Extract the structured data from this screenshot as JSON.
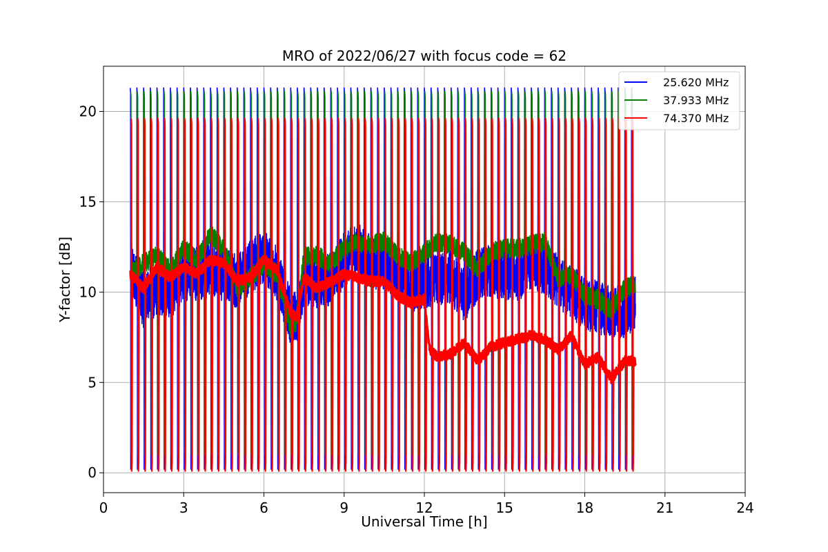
{
  "chart_data": {
    "type": "line",
    "title": "MRO of 2022/06/27 with focus code = 62",
    "xlabel": "Universal Time [h]",
    "ylabel": "Y-factor [dB]",
    "xlim": [
      0,
      24
    ],
    "ylim": [
      -1.1,
      22.5
    ],
    "xticks": [
      0,
      3,
      6,
      9,
      12,
      15,
      18,
      21,
      24
    ],
    "yticks": [
      0,
      5,
      10,
      15,
      20
    ],
    "grid": true,
    "legend_position": "top-right",
    "calibration_pulses": {
      "start_h": 1.0,
      "period_h": 0.25,
      "count": 76,
      "peak": {
        "25.620 MHz": 21.3,
        "37.933 MHz": 21.1,
        "74.370 MHz": 19.6
      },
      "floor": {
        "25.620 MHz": 0.2,
        "37.933 MHz": 1.0,
        "74.370 MHz": 0.1
      }
    },
    "series": [
      {
        "name": "25.620 MHz",
        "color": "#0000ff",
        "noise_amplitude": 1.5,
        "x": [
          1.0,
          1.5,
          2.0,
          2.5,
          3.0,
          3.5,
          4.0,
          4.5,
          5.0,
          5.5,
          6.0,
          6.5,
          7.0,
          7.2,
          7.5,
          8.0,
          8.5,
          9.0,
          9.5,
          10.0,
          10.5,
          11.0,
          11.5,
          12.0,
          12.5,
          13.0,
          13.5,
          14.0,
          14.5,
          15.0,
          15.5,
          16.0,
          16.5,
          17.0,
          17.5,
          18.0,
          18.5,
          19.0,
          19.5,
          19.9
        ],
        "values": [
          11.5,
          9.5,
          10.2,
          10.0,
          11.0,
          11.0,
          11.2,
          11.0,
          10.6,
          11.4,
          12.0,
          11.0,
          8.6,
          8.5,
          10.8,
          10.6,
          10.6,
          11.8,
          12.4,
          11.6,
          11.6,
          11.0,
          10.4,
          10.6,
          10.8,
          10.8,
          9.8,
          11.0,
          11.2,
          11.0,
          11.0,
          11.6,
          11.4,
          10.6,
          10.0,
          9.4,
          9.2,
          8.8,
          9.0,
          9.4
        ]
      },
      {
        "name": "37.933 MHz",
        "color": "#008000",
        "noise_amplitude": 0.55,
        "x": [
          1.0,
          1.5,
          2.0,
          2.5,
          3.0,
          3.5,
          4.0,
          4.5,
          5.0,
          5.5,
          6.0,
          6.5,
          7.0,
          7.2,
          7.5,
          8.0,
          8.5,
          9.0,
          9.5,
          10.0,
          10.5,
          11.0,
          11.5,
          12.0,
          12.5,
          13.0,
          13.5,
          14.0,
          14.5,
          15.0,
          15.5,
          16.0,
          16.5,
          17.0,
          17.5,
          18.0,
          18.5,
          19.0,
          19.5,
          19.9
        ],
        "values": [
          11.0,
          11.6,
          12.0,
          11.2,
          12.4,
          11.8,
          13.2,
          12.4,
          10.2,
          10.8,
          11.6,
          11.0,
          8.0,
          8.2,
          12.0,
          12.0,
          11.6,
          12.4,
          12.8,
          12.6,
          12.8,
          12.0,
          11.6,
          12.2,
          12.8,
          12.6,
          12.2,
          11.2,
          12.2,
          12.4,
          12.4,
          12.6,
          12.8,
          10.8,
          11.0,
          9.8,
          9.6,
          9.0,
          10.2,
          10.4
        ]
      },
      {
        "name": "74.370 MHz",
        "color": "#ff0000",
        "noise_amplitude": 0.3,
        "x": [
          1.0,
          1.5,
          2.0,
          2.5,
          3.0,
          3.5,
          4.0,
          4.5,
          5.0,
          5.5,
          6.0,
          6.5,
          7.0,
          7.2,
          7.5,
          8.0,
          8.5,
          9.0,
          9.5,
          10.0,
          10.5,
          11.0,
          11.5,
          12.0,
          12.2,
          12.5,
          13.0,
          13.5,
          14.0,
          14.5,
          15.0,
          15.5,
          16.0,
          16.5,
          17.0,
          17.5,
          18.0,
          18.5,
          19.0,
          19.5,
          19.9
        ],
        "values": [
          11.0,
          10.2,
          11.4,
          10.8,
          11.4,
          11.0,
          11.8,
          11.6,
          10.6,
          10.8,
          11.8,
          11.2,
          8.8,
          8.6,
          10.8,
          10.2,
          10.6,
          11.0,
          10.8,
          10.6,
          10.6,
          9.8,
          9.4,
          9.6,
          6.8,
          6.4,
          6.6,
          7.2,
          6.2,
          7.0,
          7.2,
          7.4,
          7.6,
          7.4,
          6.8,
          7.6,
          6.0,
          6.4,
          5.2,
          6.2,
          6.2
        ]
      }
    ]
  }
}
